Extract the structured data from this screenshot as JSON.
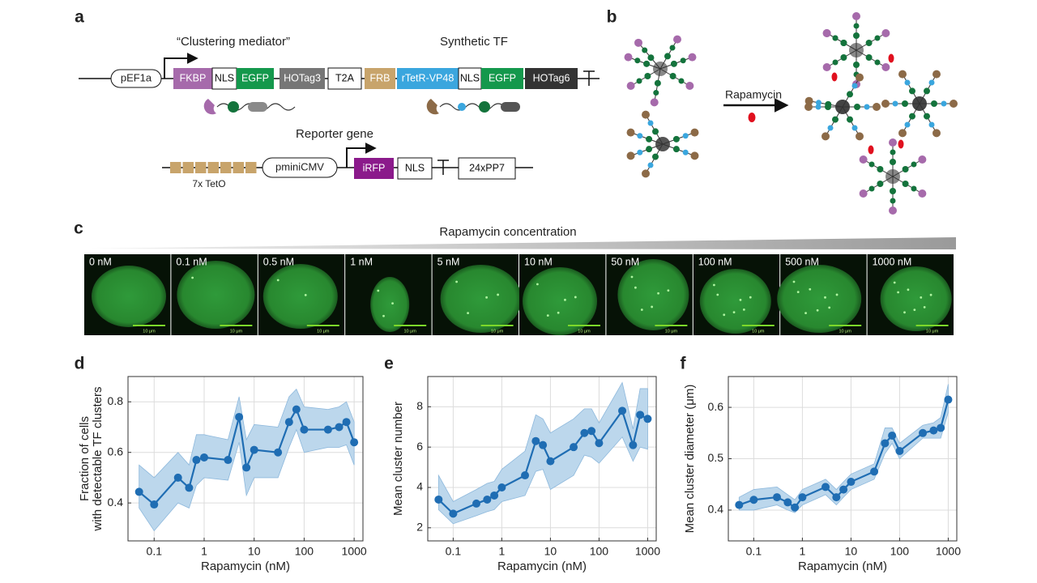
{
  "panel_labels": [
    "a",
    "b",
    "c",
    "d",
    "e",
    "f"
  ],
  "construct1": {
    "title_left": "“Clustering mediator”",
    "title_right": "Synthetic TF",
    "promoter": "pEF1a",
    "parts": [
      {
        "label": "FKBP",
        "color": "#a66aab"
      },
      {
        "label": "NLS",
        "color": "#ffffff"
      },
      {
        "label": "EGFP",
        "color": "#14984c"
      },
      {
        "label": "HOTag3",
        "color": "#767676"
      },
      {
        "label": "T2A",
        "color": "#ffffff"
      },
      {
        "label": "FRB",
        "color": "#c8a46b"
      },
      {
        "label": "rTetR-VP48",
        "color": "#3aa6de"
      },
      {
        "label": "NLS",
        "color": "#ffffff"
      },
      {
        "label": "EGFP",
        "color": "#14984c"
      },
      {
        "label": "HOTag6",
        "color": "#333333"
      }
    ]
  },
  "construct2": {
    "title": "Reporter gene",
    "operator": "7x TetO",
    "promoter": "pminiCMV",
    "parts": [
      {
        "label": "iRFP",
        "color": "#8b1a8b"
      },
      {
        "label": "NLS",
        "color": "#ffffff"
      },
      {
        "label": "24xPP7",
        "color": "#ffffff"
      }
    ]
  },
  "panel_b": {
    "arrow_label": "Rapamycin"
  },
  "panel_c": {
    "title": "Rapamycin concentration",
    "images": [
      {
        "label": "0 nM",
        "scale": "10 μm"
      },
      {
        "label": "0.1 nM",
        "scale": "10 μm"
      },
      {
        "label": "0.5 nM",
        "scale": "10 μm"
      },
      {
        "label": "1 nM",
        "scale": "10 μm"
      },
      {
        "label": "5 nM",
        "scale": "10 μm"
      },
      {
        "label": "10 nM",
        "scale": "10 μm"
      },
      {
        "label": "50 nM",
        "scale": "10 μm"
      },
      {
        "label": "100 nM",
        "scale": "10 μm"
      },
      {
        "label": "500 nM",
        "scale": "10 μm"
      },
      {
        "label": "1000 nM",
        "scale": "10 μm"
      }
    ]
  },
  "chart_data": [
    {
      "type": "line",
      "xlabel": "Rapamycin (nM)",
      "ylabel": [
        "Fraction of cells",
        "with detectable TF clusters"
      ],
      "x": [
        0.05,
        0.1,
        0.3,
        0.5,
        0.7,
        1,
        3,
        5,
        7,
        10,
        30,
        50,
        70,
        100,
        300,
        500,
        700,
        1000
      ],
      "series": [
        {
          "color": "#1f6db3",
          "band_color": "#bcd7ec",
          "values": [
            0.444,
            0.394,
            0.5,
            0.46,
            0.57,
            0.58,
            0.57,
            0.74,
            0.54,
            0.61,
            0.6,
            0.72,
            0.77,
            0.69,
            0.69,
            0.7,
            0.72,
            0.64
          ],
          "lower": [
            0.38,
            0.29,
            0.4,
            0.38,
            0.47,
            0.5,
            0.49,
            0.64,
            0.43,
            0.5,
            0.5,
            0.62,
            0.69,
            0.6,
            0.62,
            0.62,
            0.63,
            0.55
          ],
          "upper": [
            0.55,
            0.5,
            0.6,
            0.55,
            0.67,
            0.67,
            0.65,
            0.82,
            0.65,
            0.71,
            0.7,
            0.82,
            0.85,
            0.78,
            0.77,
            0.78,
            0.8,
            0.72
          ]
        }
      ],
      "xscale": "log",
      "xlim": [
        0.03,
        1500
      ],
      "xticks": [
        0.1,
        1,
        10,
        100,
        1000
      ],
      "ylim": [
        0.25,
        0.9
      ],
      "yticks": [
        0.4,
        0.6,
        0.8
      ],
      "grid": true
    },
    {
      "type": "line",
      "xlabel": "Rapamycin (nM)",
      "ylabel": [
        "Mean cluster number"
      ],
      "x": [
        0.05,
        0.1,
        0.3,
        0.5,
        0.7,
        1,
        3,
        5,
        7,
        10,
        30,
        50,
        70,
        100,
        300,
        500,
        700,
        1000
      ],
      "series": [
        {
          "color": "#1f6db3",
          "band_color": "#bcd7ec",
          "values": [
            3.4,
            2.7,
            3.2,
            3.4,
            3.6,
            4.0,
            4.6,
            6.3,
            6.1,
            5.3,
            6.0,
            6.7,
            6.8,
            6.2,
            7.8,
            6.1,
            7.6,
            7.4
          ],
          "lower": [
            2.9,
            2.2,
            2.6,
            2.8,
            2.9,
            3.3,
            3.6,
            4.8,
            4.9,
            3.9,
            4.6,
            5.6,
            5.5,
            5.2,
            6.5,
            5.3,
            6.0,
            5.9
          ],
          "upper": [
            4.6,
            3.3,
            3.9,
            4.2,
            4.3,
            4.9,
            5.8,
            7.6,
            7.4,
            6.7,
            7.4,
            7.9,
            7.9,
            7.2,
            9.2,
            6.9,
            8.9,
            8.9
          ]
        }
      ],
      "xscale": "log",
      "xlim": [
        0.03,
        1500
      ],
      "xticks": [
        0.1,
        1,
        10,
        100,
        1000
      ],
      "ylim": [
        1.35,
        9.5
      ],
      "yticks": [
        2,
        4,
        6,
        8
      ],
      "grid": true
    },
    {
      "type": "line",
      "xlabel": "Rapamycin (nM)",
      "ylabel": [
        "Mean cluster diameter (μm)"
      ],
      "x": [
        0.05,
        0.1,
        0.3,
        0.5,
        0.7,
        1,
        3,
        5,
        7,
        10,
        30,
        50,
        70,
        100,
        300,
        500,
        700,
        1000
      ],
      "series": [
        {
          "color": "#1f6db3",
          "band_color": "#bcd7ec",
          "values": [
            0.41,
            0.42,
            0.425,
            0.415,
            0.405,
            0.425,
            0.445,
            0.425,
            0.44,
            0.455,
            0.475,
            0.53,
            0.545,
            0.515,
            0.55,
            0.555,
            0.56,
            0.615
          ],
          "lower": [
            0.4,
            0.4,
            0.41,
            0.4,
            0.395,
            0.41,
            0.43,
            0.41,
            0.425,
            0.44,
            0.46,
            0.51,
            0.53,
            0.5,
            0.54,
            0.54,
            0.54,
            0.59
          ],
          "upper": [
            0.425,
            0.44,
            0.445,
            0.43,
            0.42,
            0.44,
            0.46,
            0.44,
            0.455,
            0.47,
            0.49,
            0.56,
            0.56,
            0.53,
            0.565,
            0.57,
            0.58,
            0.645
          ]
        }
      ],
      "xscale": "log",
      "xlim": [
        0.03,
        1500
      ],
      "xticks": [
        0.1,
        1,
        10,
        100,
        1000
      ],
      "ylim": [
        0.34,
        0.66
      ],
      "yticks": [
        0.4,
        0.5,
        0.6
      ],
      "grid": true
    }
  ]
}
